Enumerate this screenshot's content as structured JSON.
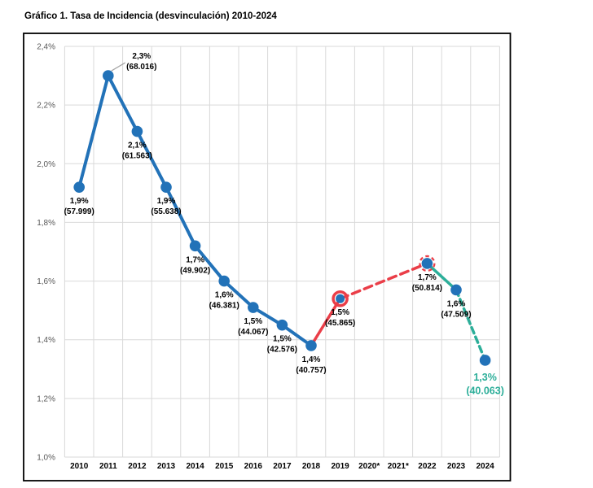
{
  "chart_data": {
    "type": "line",
    "title": "Gráfico 1. Tasa de Incidencia (desvinculación) 2010-2024",
    "categories": [
      "2010",
      "2011",
      "2012",
      "2013",
      "2014",
      "2015",
      "2016",
      "2017",
      "2018",
      "2019",
      "2020*",
      "2021*",
      "2022",
      "2023",
      "2024"
    ],
    "ylim": [
      1.0,
      2.4
    ],
    "ytick_step": 0.2,
    "ytick_labels": [
      "2,4%",
      "2,2%",
      "2,0%",
      "1,8%",
      "1,6%",
      "1,4%",
      "1,2%",
      "1,0%"
    ],
    "grid": true,
    "legend_position": "none",
    "series": [
      {
        "name": "Tasa de Incidencia (desvinculación)",
        "values_pct": [
          1.9,
          2.3,
          2.1,
          1.9,
          1.7,
          1.6,
          1.5,
          1.5,
          1.4,
          1.5,
          null,
          null,
          1.7,
          1.6,
          1.3
        ],
        "counts": [
          57999,
          68016,
          61563,
          55638,
          49902,
          46381,
          44067,
          42576,
          40757,
          45865,
          null,
          null,
          50814,
          47509,
          40063
        ],
        "plot_values_pct": [
          1.92,
          2.3,
          2.11,
          1.92,
          1.72,
          1.6,
          1.51,
          1.45,
          1.38,
          1.54,
          null,
          null,
          1.66,
          1.57,
          1.33
        ]
      }
    ],
    "point_labels": [
      {
        "year": "2010",
        "pct": "1,9%",
        "count": "(57.999)"
      },
      {
        "year": "2011",
        "pct": "2,3%",
        "count": "(68.016)"
      },
      {
        "year": "2012",
        "pct": "2,1%",
        "count": "(61.563)"
      },
      {
        "year": "2013",
        "pct": "1,9%",
        "count": "(55.638)"
      },
      {
        "year": "2014",
        "pct": "1,7%",
        "count": "(49.902)"
      },
      {
        "year": "2015",
        "pct": "1,6%",
        "count": "(46.381)"
      },
      {
        "year": "2016",
        "pct": "1,5%",
        "count": "(44.067)"
      },
      {
        "year": "2017",
        "pct": "1,5%",
        "count": "(42.576)"
      },
      {
        "year": "2018",
        "pct": "1,4%",
        "count": "(40.757)"
      },
      {
        "year": "2019",
        "pct": "1,5%",
        "count": "(45.865)"
      },
      {
        "year": "2022",
        "pct": "1,7%",
        "count": "(50.814)"
      },
      {
        "year": "2023",
        "pct": "1,6%",
        "count": "(47.509)"
      },
      {
        "year": "2024",
        "pct": "1,3%",
        "count": "(40.063)"
      }
    ],
    "segments": [
      {
        "from_index": 0,
        "to_index": 8,
        "color": "#2272B8",
        "style": "solid"
      },
      {
        "from_index": 8,
        "to_index": 9,
        "color": "#EA3E48",
        "style": "solid"
      },
      {
        "from_index": 9,
        "to_index": 12,
        "color": "#EA3E48",
        "style": "dashed"
      },
      {
        "from_index": 12,
        "to_index": 13,
        "color": "#2CAE99",
        "style": "solid"
      },
      {
        "from_index": 13,
        "to_index": 14,
        "color": "#2CAE99",
        "style": "dashed"
      }
    ],
    "highlighted_points": [
      "2019",
      "2022"
    ],
    "colors": {
      "marker": "#2272B8",
      "grid": "#D9D9D9",
      "axis_text": "#595959",
      "xaxis_text": "#000000",
      "label_text": "#000000",
      "highlight_ring": "#EA3E48",
      "final_label": "#2CAE99",
      "border": "#000000",
      "leader_line": "#A6A6A6"
    }
  }
}
